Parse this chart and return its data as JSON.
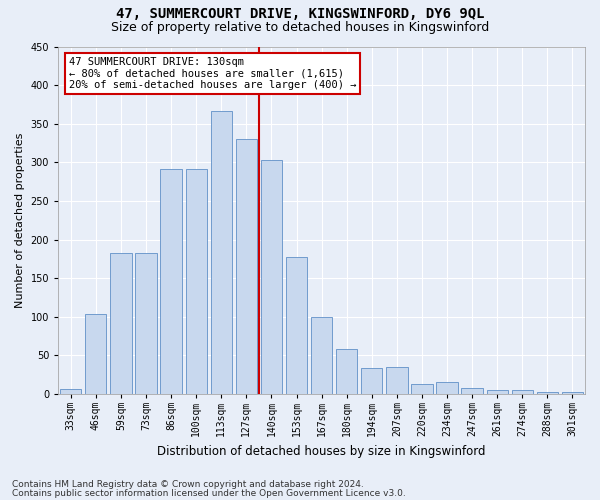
{
  "title": "47, SUMMERCOURT DRIVE, KINGSWINFORD, DY6 9QL",
  "subtitle": "Size of property relative to detached houses in Kingswinford",
  "xlabel": "Distribution of detached houses by size in Kingswinford",
  "ylabel": "Number of detached properties",
  "categories": [
    "33sqm",
    "46sqm",
    "59sqm",
    "73sqm",
    "86sqm",
    "100sqm",
    "113sqm",
    "127sqm",
    "140sqm",
    "153sqm",
    "167sqm",
    "180sqm",
    "194sqm",
    "207sqm",
    "220sqm",
    "234sqm",
    "247sqm",
    "261sqm",
    "274sqm",
    "288sqm",
    "301sqm"
  ],
  "values": [
    7,
    103,
    182,
    182,
    291,
    291,
    367,
    330,
    303,
    178,
    100,
    58,
    33,
    35,
    13,
    15,
    8,
    5,
    5,
    3,
    3
  ],
  "bar_color": "#c8d8ee",
  "bar_edge_color": "#6090c8",
  "vline_color": "#cc0000",
  "annotation_text": "47 SUMMERCOURT DRIVE: 130sqm\n← 80% of detached houses are smaller (1,615)\n20% of semi-detached houses are larger (400) →",
  "annotation_box_facecolor": "#ffffff",
  "annotation_box_edgecolor": "#cc0000",
  "footnote1": "Contains HM Land Registry data © Crown copyright and database right 2024.",
  "footnote2": "Contains public sector information licensed under the Open Government Licence v3.0.",
  "ylim": [
    0,
    450
  ],
  "yticks": [
    0,
    50,
    100,
    150,
    200,
    250,
    300,
    350,
    400,
    450
  ],
  "background_color": "#e8eef8",
  "plot_background": "#e8eef8",
  "grid_color": "#ffffff",
  "title_fontsize": 10,
  "subtitle_fontsize": 9,
  "xlabel_fontsize": 8.5,
  "ylabel_fontsize": 8,
  "tick_fontsize": 7,
  "annot_fontsize": 7.5,
  "footnote_fontsize": 6.5
}
